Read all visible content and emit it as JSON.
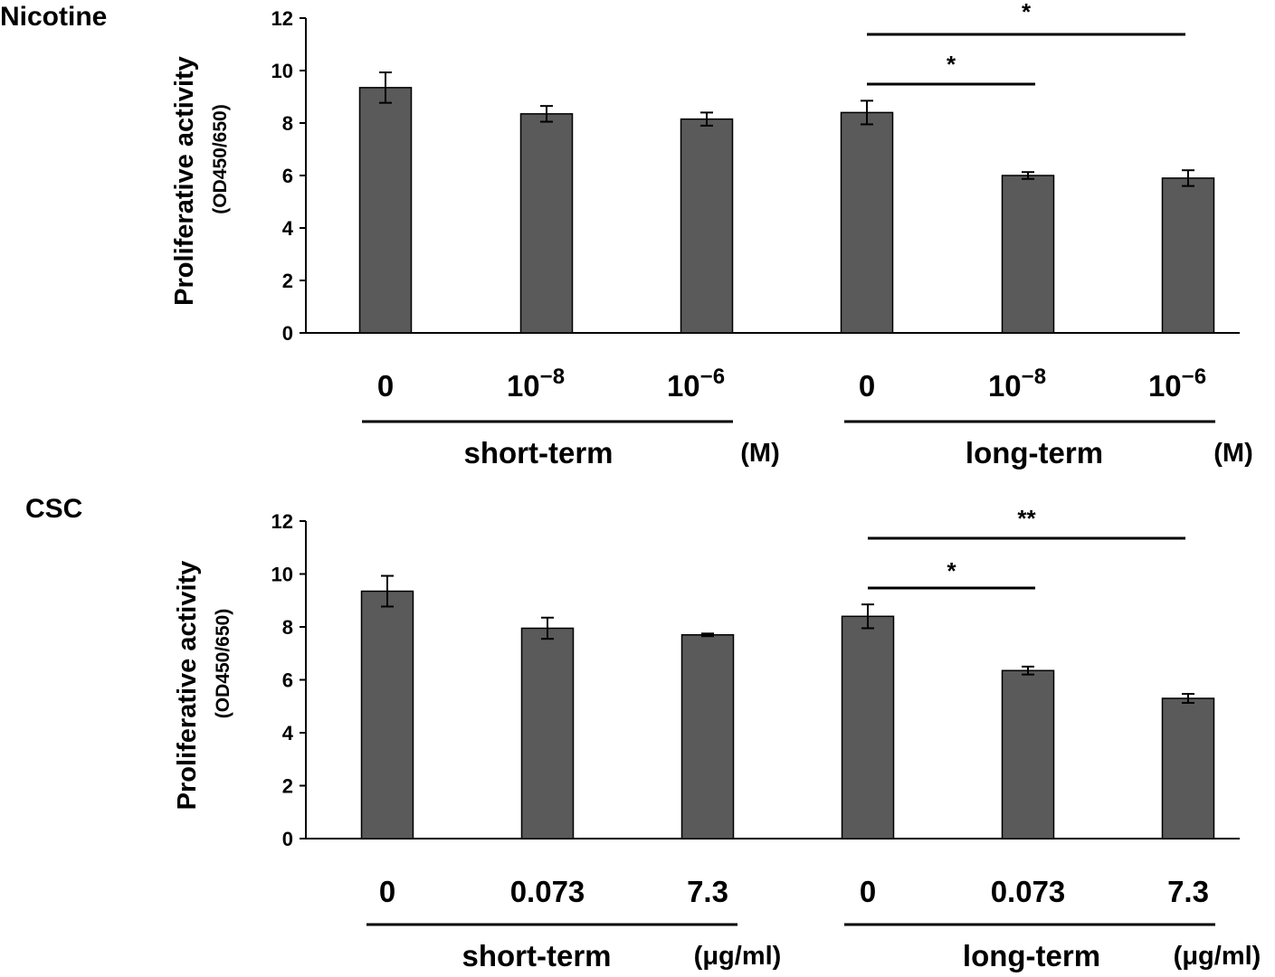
{
  "chart_data": [
    {
      "type": "bar",
      "title": "Nicotine",
      "ylabel": "Proliferative activity",
      "ylabel_sub": "(OD450/650)",
      "ylim": [
        0,
        12
      ],
      "yticks": [
        "0",
        "2",
        "4",
        "6",
        "8",
        "10",
        "12"
      ],
      "categories": [
        {
          "base": "0",
          "exp": ""
        },
        {
          "base": "10",
          "exp": "−8"
        },
        {
          "base": "10",
          "exp": "−6"
        },
        {
          "base": "0",
          "exp": ""
        },
        {
          "base": "10",
          "exp": "−8"
        },
        {
          "base": "10",
          "exp": "−6"
        }
      ],
      "values": [
        9.35,
        8.35,
        8.15,
        8.4,
        6.0,
        5.9
      ],
      "errors": [
        0.58,
        0.3,
        0.25,
        0.45,
        0.13,
        0.3
      ],
      "groups": [
        {
          "label": "short-term",
          "unit": "(M)"
        },
        {
          "label": "long-term",
          "unit": "(M)"
        }
      ],
      "significance": [
        {
          "from": 3,
          "to": 5,
          "label": "*"
        },
        {
          "from": 3,
          "to": 4,
          "label": "*"
        }
      ]
    },
    {
      "type": "bar",
      "title": "CSC",
      "ylabel": "Proliferative activity",
      "ylabel_sub": "(OD450/650)",
      "ylim": [
        0,
        12
      ],
      "yticks": [
        "0",
        "2",
        "4",
        "6",
        "8",
        "10",
        "12"
      ],
      "categories": [
        {
          "base": "0",
          "exp": ""
        },
        {
          "base": "0.073",
          "exp": ""
        },
        {
          "base": "7.3",
          "exp": ""
        },
        {
          "base": "0",
          "exp": ""
        },
        {
          "base": "0.073",
          "exp": ""
        },
        {
          "base": "7.3",
          "exp": ""
        }
      ],
      "values": [
        9.35,
        7.95,
        7.7,
        8.4,
        6.35,
        5.3
      ],
      "errors": [
        0.58,
        0.4,
        0.05,
        0.45,
        0.15,
        0.17
      ],
      "groups": [
        {
          "label": "short-term",
          "unit": "(μg/ml)"
        },
        {
          "label": "long-term",
          "unit": "(μg/ml)"
        }
      ],
      "significance": [
        {
          "from": 3,
          "to": 5,
          "label": "**"
        },
        {
          "from": 3,
          "to": 4,
          "label": "*"
        }
      ]
    }
  ]
}
